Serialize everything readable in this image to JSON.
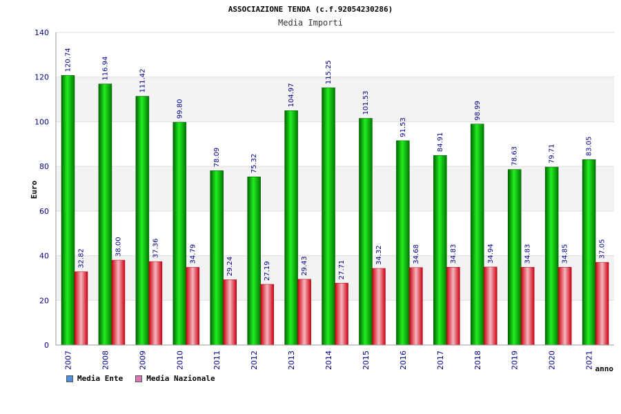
{
  "chart_data": {
    "type": "bar",
    "title": "ASSOCIAZIONE TENDA (c.f.92054230286)",
    "subtitle": "Media Importi",
    "ylabel": "Euro",
    "xlabel": "anno",
    "ylim": [
      0,
      140
    ],
    "yticks": [
      0,
      20,
      40,
      60,
      80,
      100,
      120,
      140
    ],
    "grid": true,
    "legend_position": "bottom-left",
    "categories": [
      "2007",
      "2008",
      "2009",
      "2010",
      "2011",
      "2012",
      "2013",
      "2014",
      "2015",
      "2016",
      "2017",
      "2018",
      "2019",
      "2020",
      "2021"
    ],
    "series": [
      {
        "name": "Media Ente",
        "color": "#00cc00",
        "legend_color": "#4f8fe0",
        "values": [
          120.74,
          116.94,
          111.42,
          99.8,
          78.09,
          75.32,
          104.97,
          115.25,
          101.53,
          91.53,
          84.91,
          98.99,
          78.63,
          79.71,
          83.05
        ],
        "labels": [
          "120.74",
          "116.94",
          "111.42",
          "99.80",
          "78.09",
          "75.32",
          "104.97",
          "115.25",
          "101.53",
          "91.53",
          "84.91",
          "98.99",
          "78.63",
          "79.71",
          "83.05"
        ]
      },
      {
        "name": "Media Nazionale",
        "color": "#e8202a",
        "legend_color": "#d97ab0",
        "values": [
          32.82,
          38.0,
          37.36,
          34.79,
          29.24,
          27.19,
          29.43,
          27.71,
          34.32,
          34.68,
          34.83,
          34.94,
          34.83,
          34.85,
          37.05
        ],
        "labels": [
          "32.82",
          "38.00",
          "37.36",
          "34.79",
          "29.24",
          "27.19",
          "29.43",
          "27.71",
          "34.32",
          "34.68",
          "34.83",
          "34.94",
          "34.83",
          "34.85",
          "37.05"
        ]
      }
    ]
  }
}
